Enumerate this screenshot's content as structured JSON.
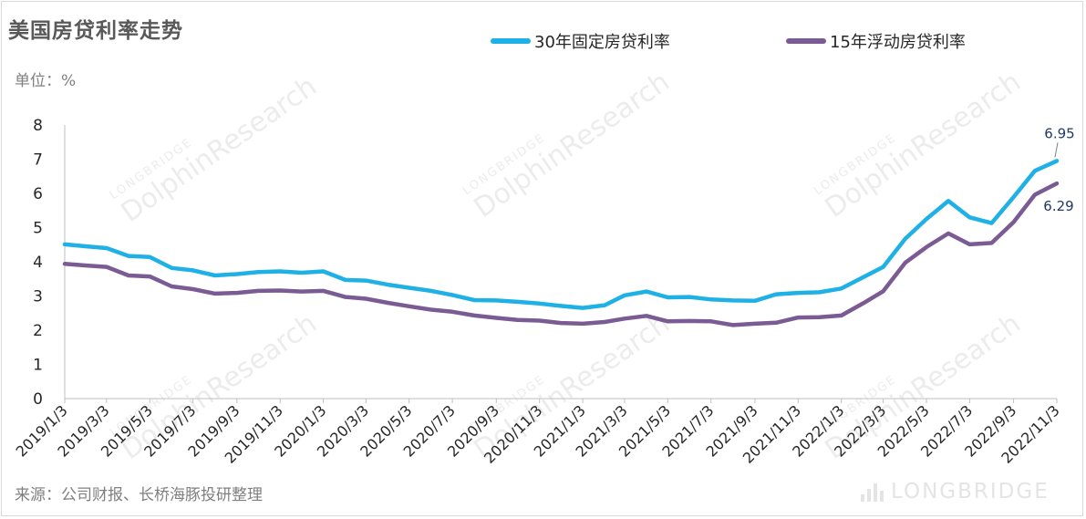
{
  "title": "美国房贷利率走势",
  "unit_label": "单位：%",
  "source": "来源：公司财报、长桥海豚投研整理",
  "watermark": {
    "brand_text": "LONGBRIDGE",
    "small_text": "LONGBRIDGE",
    "big_text": "DolphinResearch"
  },
  "colors": {
    "series_30y": "#1fb1e6",
    "series_15y": "#7a5b93",
    "axis": "#bfbfbf",
    "text": "#262626",
    "end_label": "#1f3864"
  },
  "chart_data": {
    "type": "line",
    "title": "美国房贷利率走势",
    "ylabel": "单位：%",
    "xlabel": "",
    "ylim": [
      0,
      8
    ],
    "yticks": [
      "0",
      "1",
      "2",
      "3",
      "4",
      "5",
      "6",
      "7",
      "8"
    ],
    "grid": false,
    "legend_position": "top",
    "x_tick_labels": [
      "2019/1/3",
      "2019/3/3",
      "2019/5/3",
      "2019/7/3",
      "2019/9/3",
      "2019/11/3",
      "2020/1/3",
      "2020/3/3",
      "2020/5/3",
      "2020/7/3",
      "2020/9/3",
      "2020/11/3",
      "2021/1/3",
      "2021/3/3",
      "2021/5/3",
      "2021/7/3",
      "2021/9/3",
      "2021/11/3",
      "2022/1/3",
      "2022/3/3",
      "2022/5/3",
      "2022/7/3",
      "2022/9/3",
      "2022/11/3"
    ],
    "x": [
      "2019/1/3",
      "2019/2/3",
      "2019/3/3",
      "2019/4/3",
      "2019/5/3",
      "2019/6/3",
      "2019/7/3",
      "2019/8/3",
      "2019/9/3",
      "2019/10/3",
      "2019/11/3",
      "2019/12/3",
      "2020/1/3",
      "2020/2/3",
      "2020/3/3",
      "2020/4/3",
      "2020/5/3",
      "2020/6/3",
      "2020/7/3",
      "2020/8/3",
      "2020/9/3",
      "2020/10/3",
      "2020/11/3",
      "2020/12/3",
      "2021/1/3",
      "2021/2/3",
      "2021/3/3",
      "2021/4/3",
      "2021/5/3",
      "2021/6/3",
      "2021/7/3",
      "2021/8/3",
      "2021/9/3",
      "2021/10/3",
      "2021/11/3",
      "2021/12/3",
      "2022/1/3",
      "2022/2/3",
      "2022/3/3",
      "2022/4/3",
      "2022/5/3",
      "2022/6/3",
      "2022/7/3",
      "2022/8/3",
      "2022/9/3",
      "2022/10/3",
      "2022/11/3"
    ],
    "series": [
      {
        "name": "30年固定房贷利率",
        "values": [
          4.51,
          4.45,
          4.4,
          4.17,
          4.14,
          3.82,
          3.75,
          3.6,
          3.64,
          3.7,
          3.72,
          3.68,
          3.72,
          3.47,
          3.45,
          3.33,
          3.24,
          3.15,
          3.03,
          2.88,
          2.87,
          2.83,
          2.78,
          2.71,
          2.65,
          2.73,
          3.02,
          3.13,
          2.96,
          2.97,
          2.9,
          2.87,
          2.86,
          3.05,
          3.09,
          3.11,
          3.22,
          3.55,
          3.85,
          4.67,
          5.25,
          5.78,
          5.3,
          5.13,
          5.89,
          6.66,
          6.95
        ]
      },
      {
        "name": "15年浮动房贷利率",
        "values": [
          3.94,
          3.89,
          3.85,
          3.6,
          3.57,
          3.28,
          3.2,
          3.07,
          3.09,
          3.15,
          3.16,
          3.13,
          3.15,
          2.97,
          2.92,
          2.8,
          2.7,
          2.6,
          2.54,
          2.43,
          2.36,
          2.3,
          2.28,
          2.21,
          2.19,
          2.24,
          2.34,
          2.42,
          2.26,
          2.27,
          2.26,
          2.15,
          2.19,
          2.22,
          2.37,
          2.38,
          2.43,
          2.79,
          3.14,
          3.97,
          4.43,
          4.83,
          4.51,
          4.55,
          5.16,
          5.96,
          6.29
        ]
      }
    ],
    "end_labels": [
      "6.95",
      "6.29"
    ]
  }
}
